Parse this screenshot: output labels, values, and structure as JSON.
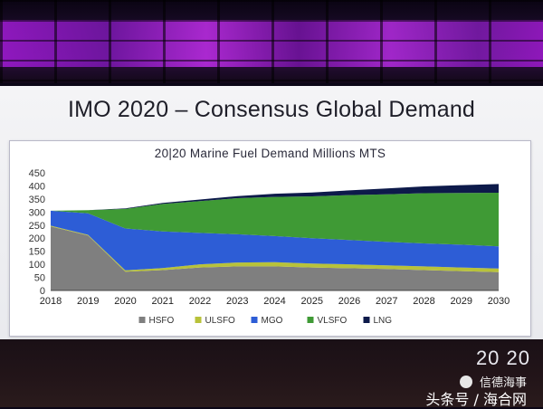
{
  "slide": {
    "title": "IMO 2020 – Consensus Global Demand",
    "brand": "20 20"
  },
  "watermark": {
    "top": "信德海事",
    "bottom": "头条号 / 海合网",
    "icon": "wechat-icon"
  },
  "chart_data": {
    "type": "area",
    "title": "20|20 Marine Fuel Demand Millions MTS",
    "x": [
      "2018",
      "2019",
      "2020",
      "2021",
      "2022",
      "2023",
      "2024",
      "2025",
      "2026",
      "2027",
      "2028",
      "2029",
      "2030"
    ],
    "ylim": [
      0,
      450
    ],
    "yticks": [
      0,
      50,
      100,
      150,
      200,
      250,
      300,
      350,
      400,
      450
    ],
    "stacked": true,
    "grid": false,
    "legend_position": "bottom",
    "series": [
      {
        "name": "HSFO",
        "color": "#7f7f7f",
        "values": [
          245,
          210,
          72,
          78,
          88,
          92,
          92,
          88,
          85,
          82,
          78,
          74,
          70
        ]
      },
      {
        "name": "ULSFO",
        "color": "#b8c23a",
        "values": [
          3,
          3,
          5,
          8,
          12,
          15,
          16,
          15,
          15,
          14,
          14,
          14,
          14
        ]
      },
      {
        "name": "MGO",
        "color": "#2d5dd6",
        "values": [
          57,
          82,
          160,
          140,
          120,
          108,
          100,
          97,
          93,
          90,
          88,
          87,
          85
        ]
      },
      {
        "name": "VLSFO",
        "color": "#3f9a35",
        "values": [
          0,
          12,
          75,
          105,
          122,
          138,
          150,
          160,
          172,
          182,
          192,
          198,
          205
        ]
      },
      {
        "name": "LNG",
        "color": "#0d1a4a",
        "values": [
          0,
          0,
          2,
          4,
          6,
          8,
          12,
          15,
          18,
          22,
          26,
          30,
          33
        ]
      }
    ]
  }
}
